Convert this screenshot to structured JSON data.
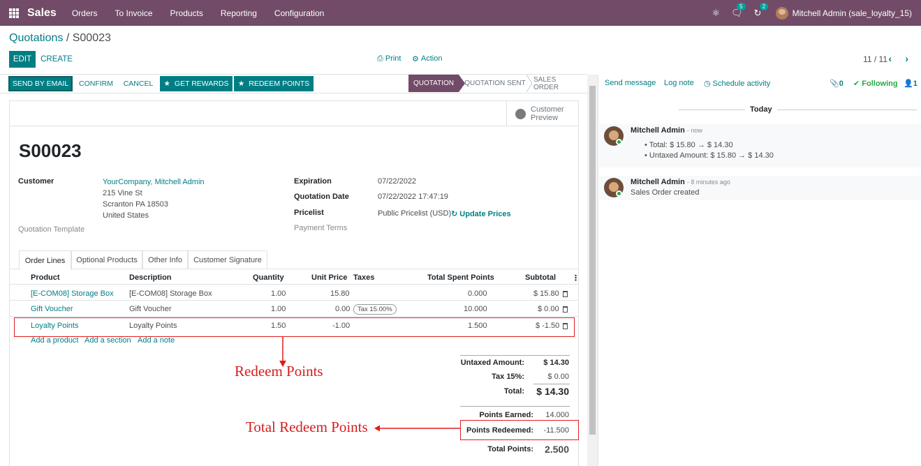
{
  "navbar": {
    "brand": "Sales",
    "menu": [
      "Orders",
      "To Invoice",
      "Products",
      "Reporting",
      "Configuration"
    ],
    "messages_count": "5",
    "activities_count": "2",
    "user": "Mitchell Admin (sale_loyalty_15)"
  },
  "control": {
    "breadcrumb_parent": "Quotations",
    "breadcrumb_sep": " / ",
    "breadcrumb_current": "S00023",
    "edit": "EDIT",
    "create": "CREATE",
    "print": "Print",
    "action": "Action",
    "pager": "11 / 11"
  },
  "statusbar": {
    "send_email": "SEND BY EMAIL",
    "confirm": "CONFIRM",
    "cancel": "CANCEL",
    "get_rewards": "GET REWARDS",
    "redeem_points": "REDEEM POINTS",
    "stages": [
      "QUOTATION",
      "QUOTATION SENT",
      "SALES ORDER"
    ]
  },
  "form": {
    "customer_preview_1": "Customer",
    "customer_preview_2": "Preview",
    "name": "S00023",
    "customer_label": "Customer",
    "customer_name": "YourCompany, Mitchell Admin",
    "address_1": "215 Vine St",
    "address_2": "Scranton PA 18503",
    "address_3": "United States",
    "quotation_template_label": "Quotation Template",
    "expiration_label": "Expiration",
    "expiration": "07/22/2022",
    "quotation_date_label": "Quotation Date",
    "quotation_date": "07/22/2022 17:47:19",
    "pricelist_label": "Pricelist",
    "pricelist": "Public Pricelist (USD)",
    "update_prices": "Update Prices",
    "payment_terms_label": "Payment Terms"
  },
  "tabs": [
    "Order Lines",
    "Optional Products",
    "Other Info",
    "Customer Signature"
  ],
  "table": {
    "headers": [
      "Product",
      "Description",
      "Quantity",
      "Unit Price",
      "Taxes",
      "Total Spent Points",
      "Subtotal"
    ],
    "rows": [
      {
        "product": "[E-COM08] Storage Box",
        "description": "[E-COM08] Storage Box",
        "quantity": "1.00",
        "unit_price": "15.80",
        "taxes": "",
        "points": "0.000",
        "subtotal": "$ 15.80"
      },
      {
        "product": "Gift Voucher",
        "description": "Gift Voucher",
        "quantity": "1.00",
        "unit_price": "0.00",
        "taxes": "Tax 15.00%",
        "points": "10.000",
        "subtotal": "$ 0.00"
      },
      {
        "product": "Loyalty Points",
        "description": "Loyalty Points",
        "quantity": "1.50",
        "unit_price": "-1.00",
        "taxes": "",
        "points": "1.500",
        "subtotal": "$ -1.50"
      }
    ],
    "add_product": "Add a product",
    "add_section": "Add a section",
    "add_note": "Add a note"
  },
  "totals": {
    "untaxed_label": "Untaxed Amount:",
    "untaxed": "$ 14.30",
    "tax_label": "Tax 15%:",
    "tax": "$ 0.00",
    "total_label": "Total:",
    "total": "$ 14.30",
    "earned_label": "Points Earned:",
    "earned": "14.000",
    "redeemed_label": "Points Redeemed:",
    "redeemed": "-11.500",
    "total_points_label": "Total Points:",
    "total_points": "2.500"
  },
  "annotations": {
    "redeem_points": "Redeem Points",
    "total_redeem_points": "Total Redeem Points"
  },
  "chatter": {
    "send_message": "Send message",
    "log_note": "Log note",
    "schedule_activity": "Schedule activity",
    "attachments": "0",
    "following": "Following",
    "followers": "1",
    "date_separator": "Today",
    "messages": [
      {
        "author": "Mitchell Admin",
        "time": "- now",
        "line1": "Total: $ 15.80 → $ 14.30",
        "line2": "Untaxed Amount: $ 15.80 → $ 14.30"
      },
      {
        "author": "Mitchell Admin",
        "time": "- 8 minutes ago",
        "body": "Sales Order created"
      }
    ]
  },
  "colors": {
    "brand": "#714b67",
    "primary": "#017e84",
    "annotation": "#e31b1b",
    "following": "#28a745"
  }
}
